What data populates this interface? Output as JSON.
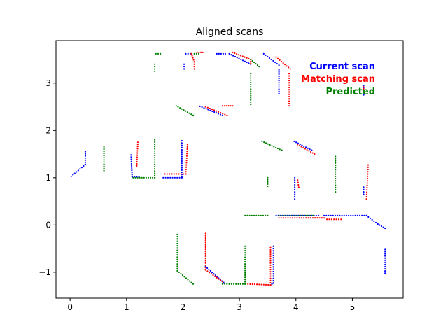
{
  "chart_data": {
    "type": "scatter",
    "title": "Aligned scans",
    "xlabel": "",
    "ylabel": "",
    "xlim": [
      -0.25,
      5.9
    ],
    "ylim": [
      -1.55,
      3.9
    ],
    "grid": false,
    "legend_placement": "top-right",
    "x_ticks": [
      0,
      1,
      2,
      3,
      4,
      5
    ],
    "y_ticks": [
      -1,
      0,
      1,
      2,
      3
    ],
    "series": [
      {
        "name": "Current scan",
        "color": "#0000ff",
        "segments": [
          [
            [
              0.02,
              1.03
            ],
            [
              0.27,
              1.28
            ],
            [
              0.27,
              1.55
            ]
          ],
          [
            [
              1.08,
              1.48
            ],
            [
              1.1,
              1.02
            ],
            [
              1.22,
              1.02
            ]
          ],
          [
            [
              1.65,
              1.0
            ],
            [
              1.98,
              1.0
            ],
            [
              1.98,
              1.02
            ],
            [
              1.98,
              1.78
            ]
          ],
          [
            [
              2.05,
              3.62
            ],
            [
              2.13,
              3.62
            ]
          ],
          [
            [
              2.02,
              3.4
            ],
            [
              2.02,
              3.3
            ]
          ],
          [
            [
              2.3,
              2.51
            ],
            [
              2.7,
              2.32
            ]
          ],
          [
            [
              2.6,
              3.62
            ],
            [
              2.75,
              3.62
            ]
          ],
          [
            [
              2.82,
              3.62
            ],
            [
              3.2,
              3.4
            ]
          ],
          [
            [
              3.43,
              3.62
            ],
            [
              3.7,
              3.38
            ]
          ],
          [
            [
              3.7,
              3.28
            ],
            [
              3.7,
              2.78
            ]
          ],
          [
            [
              3.65,
              0.2
            ],
            [
              4.4,
              0.2
            ]
          ],
          [
            [
              3.98,
              1.0
            ],
            [
              3.98,
              0.55
            ]
          ],
          [
            [
              3.97,
              1.77
            ],
            [
              4.28,
              1.58
            ]
          ],
          [
            [
              4.5,
              0.2
            ],
            [
              5.25,
              0.2
            ],
            [
              5.45,
              0.02
            ],
            [
              5.58,
              -0.07
            ]
          ],
          [
            [
              5.2,
              0.8
            ],
            [
              5.2,
              0.65
            ]
          ],
          [
            [
              5.2,
              2.95
            ],
            [
              5.2,
              2.75
            ]
          ],
          [
            [
              5.58,
              -0.52
            ],
            [
              5.58,
              -1.02
            ]
          ],
          [
            [
              2.4,
              -0.88
            ],
            [
              2.72,
              -1.22
            ],
            [
              2.72,
              -1.23
            ]
          ],
          [
            [
              3.6,
              -0.45
            ],
            [
              3.6,
              -1.23
            ],
            [
              3.55,
              -1.27
            ]
          ]
        ]
      },
      {
        "name": "Matching scan",
        "color": "#ff0000",
        "segments": [
          [
            [
              1.18,
              1.25
            ],
            [
              1.2,
              1.75
            ]
          ],
          [
            [
              1.68,
              1.08
            ],
            [
              2.05,
              1.08
            ],
            [
              2.08,
              1.7
            ]
          ],
          [
            [
              2.15,
              3.62
            ],
            [
              2.2,
              3.45
            ],
            [
              2.2,
              3.3
            ]
          ],
          [
            [
              2.25,
              3.65
            ],
            [
              2.35,
              3.65
            ]
          ],
          [
            [
              2.7,
              2.52
            ],
            [
              2.88,
              2.52
            ]
          ],
          [
            [
              2.4,
              2.5
            ],
            [
              2.78,
              2.32
            ]
          ],
          [
            [
              2.88,
              3.65
            ],
            [
              3.2,
              3.5
            ],
            [
              3.2,
              3.42
            ]
          ],
          [
            [
              3.65,
              3.55
            ],
            [
              3.9,
              3.3
            ]
          ],
          [
            [
              3.88,
              3.2
            ],
            [
              3.88,
              2.52
            ]
          ],
          [
            [
              3.7,
              0.15
            ],
            [
              4.5,
              0.15
            ]
          ],
          [
            [
              4.03,
              0.95
            ],
            [
              4.05,
              0.8
            ]
          ],
          [
            [
              4.03,
              1.7
            ],
            [
              4.33,
              1.5
            ]
          ],
          [
            [
              4.55,
              0.12
            ],
            [
              4.8,
              0.12
            ]
          ],
          [
            [
              5.25,
              0.55
            ],
            [
              5.28,
              1.27
            ]
          ],
          [
            [
              5.2,
              2.92
            ],
            [
              5.2,
              2.8
            ]
          ],
          [
            [
              2.4,
              -0.18
            ],
            [
              2.4,
              -0.95
            ],
            [
              2.7,
              -1.2
            ]
          ],
          [
            [
              3.15,
              -1.25
            ],
            [
              3.55,
              -1.27
            ],
            [
              3.55,
              -0.48
            ]
          ]
        ]
      },
      {
        "name": "Predicted",
        "color": "#008000",
        "segments": [
          [
            [
              0.6,
              1.15
            ],
            [
              0.6,
              1.65
            ]
          ],
          [
            [
              1.12,
              1.0
            ],
            [
              1.5,
              1.0
            ]
          ],
          [
            [
              1.5,
              1.0
            ],
            [
              1.5,
              1.8
            ]
          ],
          [
            [
              1.52,
              3.62
            ],
            [
              1.6,
              3.62
            ]
          ],
          [
            [
              1.5,
              3.4
            ],
            [
              1.5,
              3.25
            ]
          ],
          [
            [
              1.88,
              2.52
            ],
            [
              2.18,
              2.32
            ]
          ],
          [
            [
              2.2,
              3.62
            ],
            [
              2.28,
              3.62
            ]
          ],
          [
            [
              3.2,
              3.5
            ],
            [
              3.35,
              3.35
            ]
          ],
          [
            [
              3.2,
              3.2
            ],
            [
              3.2,
              2.55
            ]
          ],
          [
            [
              3.4,
              1.77
            ],
            [
              3.75,
              1.58
            ]
          ],
          [
            [
              3.1,
              0.2
            ],
            [
              3.5,
              0.2
            ]
          ],
          [
            [
              3.7,
              0.2
            ],
            [
              4.3,
              0.2
            ]
          ],
          [
            [
              3.5,
              1.0
            ],
            [
              3.5,
              0.82
            ]
          ],
          [
            [
              4.7,
              1.45
            ],
            [
              4.7,
              0.7
            ]
          ],
          [
            [
              1.9,
              -0.2
            ],
            [
              1.9,
              -0.97
            ],
            [
              2.18,
              -1.25
            ]
          ],
          [
            [
              2.7,
              -1.25
            ],
            [
              3.1,
              -1.25
            ]
          ],
          [
            [
              3.1,
              -0.45
            ],
            [
              3.1,
              -1.25
            ]
          ]
        ]
      }
    ]
  }
}
